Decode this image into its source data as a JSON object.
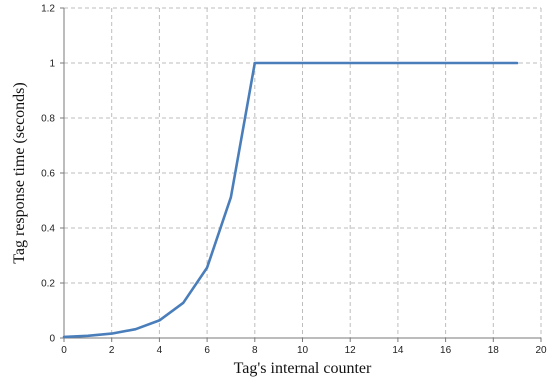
{
  "chart_data": {
    "type": "line",
    "title": "",
    "xlabel": "Tag's internal counter",
    "ylabel": "Tag response time (seconds)",
    "xlim": [
      0,
      20
    ],
    "ylim": [
      0,
      1.2
    ],
    "x_ticks": [
      0,
      2,
      4,
      6,
      8,
      10,
      12,
      14,
      16,
      18,
      20
    ],
    "y_ticks": [
      0,
      0.2,
      0.4,
      0.6,
      0.8,
      1,
      1.2
    ],
    "grid": true,
    "legend": "none",
    "series": [
      {
        "color": "#4a7ebb",
        "x": [
          0,
          1,
          2,
          3,
          4,
          5,
          6,
          7,
          8,
          9,
          10,
          11,
          12,
          13,
          14,
          15,
          16,
          17,
          18,
          19
        ],
        "y": [
          0.004,
          0.008,
          0.016,
          0.032,
          0.064,
          0.128,
          0.256,
          0.512,
          1,
          1,
          1,
          1,
          1,
          1,
          1,
          1,
          1,
          1,
          1,
          1
        ]
      }
    ]
  }
}
